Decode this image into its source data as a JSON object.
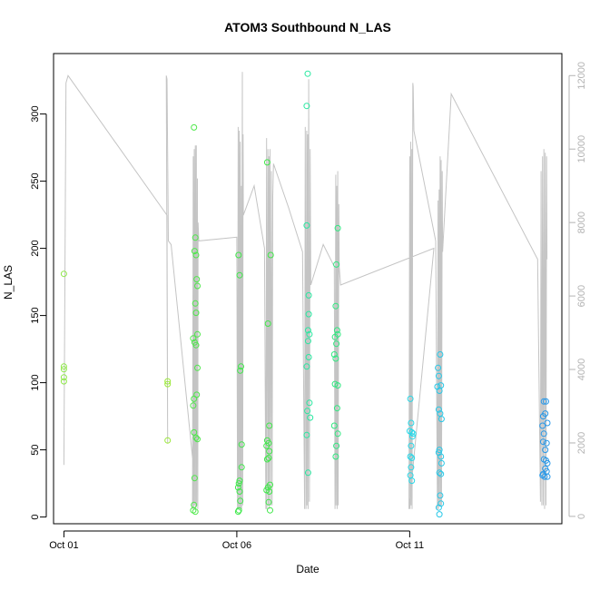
{
  "chart_data": {
    "type": "scatter",
    "title": "ATOM3 Southbound N_LAS",
    "xlabel": "Date",
    "ylabel": "N_LAS",
    "x_tick_labels": [
      "Oct 01",
      "Oct 06",
      "Oct 11"
    ],
    "x_ticks_day": [
      1,
      6,
      11
    ],
    "xlim_day": [
      0.7,
      15.4
    ],
    "ylim": [
      -5,
      345
    ],
    "y_ticks": [
      0,
      50,
      100,
      150,
      200,
      250,
      300
    ],
    "secondary_axis": {
      "ylim": [
        -200,
        12600
      ],
      "ticks": [
        0,
        2000,
        4000,
        6000,
        8000,
        10000,
        12000
      ],
      "color": "#b3b3b3"
    },
    "series": [
      {
        "values": [
          {
            "day": 1.0,
            "y": 181
          },
          {
            "day": 1.0,
            "y": 112
          },
          {
            "day": 1.0,
            "y": 110
          },
          {
            "day": 1.0,
            "y": 104
          },
          {
            "day": 1.0,
            "y": 101
          }
        ]
      },
      {
        "values": [
          {
            "day": 4.0,
            "y": 101
          },
          {
            "day": 4.0,
            "y": 99
          },
          {
            "day": 4.0,
            "y": 57
          }
        ]
      },
      {
        "values": [
          {
            "day": 4.76,
            "y": 290
          },
          {
            "day": 4.8,
            "y": 208
          },
          {
            "day": 4.78,
            "y": 198
          },
          {
            "day": 4.82,
            "y": 195
          },
          {
            "day": 4.84,
            "y": 177
          },
          {
            "day": 4.86,
            "y": 172
          },
          {
            "day": 4.8,
            "y": 159
          },
          {
            "day": 4.82,
            "y": 152
          },
          {
            "day": 4.86,
            "y": 136
          },
          {
            "day": 4.74,
            "y": 133
          },
          {
            "day": 4.78,
            "y": 130
          },
          {
            "day": 4.82,
            "y": 128
          },
          {
            "day": 4.86,
            "y": 111
          },
          {
            "day": 4.84,
            "y": 91
          },
          {
            "day": 4.76,
            "y": 88
          },
          {
            "day": 4.74,
            "y": 83
          },
          {
            "day": 4.76,
            "y": 63
          },
          {
            "day": 4.82,
            "y": 59
          },
          {
            "day": 4.86,
            "y": 58
          },
          {
            "day": 4.78,
            "y": 29
          },
          {
            "day": 4.76,
            "y": 9
          },
          {
            "day": 4.74,
            "y": 5
          },
          {
            "day": 4.8,
            "y": 4
          }
        ]
      },
      {
        "values": [
          {
            "day": 6.05,
            "y": 195
          },
          {
            "day": 6.08,
            "y": 180
          },
          {
            "day": 6.12,
            "y": 112
          },
          {
            "day": 6.1,
            "y": 109
          },
          {
            "day": 6.14,
            "y": 54
          },
          {
            "day": 6.14,
            "y": 37
          },
          {
            "day": 6.08,
            "y": 27
          },
          {
            "day": 6.06,
            "y": 25
          },
          {
            "day": 6.04,
            "y": 22
          },
          {
            "day": 6.08,
            "y": 19
          },
          {
            "day": 6.1,
            "y": 12
          },
          {
            "day": 6.06,
            "y": 5
          },
          {
            "day": 6.04,
            "y": 4
          }
        ]
      },
      {
        "values": [
          {
            "day": 6.88,
            "y": 264
          },
          {
            "day": 6.98,
            "y": 195
          },
          {
            "day": 6.9,
            "y": 144
          },
          {
            "day": 6.94,
            "y": 68
          },
          {
            "day": 6.88,
            "y": 57
          },
          {
            "day": 6.92,
            "y": 55
          },
          {
            "day": 6.86,
            "y": 53
          },
          {
            "day": 6.94,
            "y": 49
          },
          {
            "day": 6.92,
            "y": 44
          },
          {
            "day": 6.88,
            "y": 43
          },
          {
            "day": 6.96,
            "y": 24
          },
          {
            "day": 6.9,
            "y": 22
          },
          {
            "day": 6.86,
            "y": 20
          },
          {
            "day": 6.94,
            "y": 19
          },
          {
            "day": 6.92,
            "y": 11
          },
          {
            "day": 6.96,
            "y": 5
          }
        ]
      },
      {
        "values": [
          {
            "day": 8.05,
            "y": 330
          },
          {
            "day": 8.02,
            "y": 306
          },
          {
            "day": 8.02,
            "y": 217
          },
          {
            "day": 8.08,
            "y": 165
          },
          {
            "day": 8.08,
            "y": 151
          },
          {
            "day": 8.06,
            "y": 139
          },
          {
            "day": 8.1,
            "y": 136
          },
          {
            "day": 8.06,
            "y": 131
          },
          {
            "day": 8.08,
            "y": 119
          },
          {
            "day": 8.02,
            "y": 112
          },
          {
            "day": 8.1,
            "y": 85
          },
          {
            "day": 8.04,
            "y": 79
          },
          {
            "day": 8.12,
            "y": 74
          },
          {
            "day": 8.02,
            "y": 61
          },
          {
            "day": 8.06,
            "y": 33
          }
        ]
      },
      {
        "values": [
          {
            "day": 8.92,
            "y": 215
          },
          {
            "day": 8.88,
            "y": 188
          },
          {
            "day": 8.86,
            "y": 157
          },
          {
            "day": 8.9,
            "y": 139
          },
          {
            "day": 8.92,
            "y": 136
          },
          {
            "day": 8.84,
            "y": 134
          },
          {
            "day": 8.88,
            "y": 129
          },
          {
            "day": 8.82,
            "y": 121
          },
          {
            "day": 8.86,
            "y": 118
          },
          {
            "day": 8.84,
            "y": 99
          },
          {
            "day": 8.92,
            "y": 98
          },
          {
            "day": 8.9,
            "y": 81
          },
          {
            "day": 8.82,
            "y": 68
          },
          {
            "day": 8.92,
            "y": 62
          },
          {
            "day": 8.88,
            "y": 53
          },
          {
            "day": 8.86,
            "y": 45
          }
        ]
      },
      {
        "values": [
          {
            "day": 11.02,
            "y": 88
          },
          {
            "day": 11.04,
            "y": 70
          },
          {
            "day": 11.0,
            "y": 64
          },
          {
            "day": 11.06,
            "y": 63
          },
          {
            "day": 11.1,
            "y": 62
          },
          {
            "day": 11.08,
            "y": 60
          },
          {
            "day": 11.04,
            "y": 53
          },
          {
            "day": 11.02,
            "y": 45
          },
          {
            "day": 11.06,
            "y": 44
          },
          {
            "day": 11.04,
            "y": 37
          },
          {
            "day": 11.02,
            "y": 31
          },
          {
            "day": 11.06,
            "y": 27
          }
        ]
      },
      {
        "values": [
          {
            "day": 11.88,
            "y": 121
          },
          {
            "day": 11.82,
            "y": 111
          },
          {
            "day": 11.84,
            "y": 105
          },
          {
            "day": 11.9,
            "y": 98
          },
          {
            "day": 11.8,
            "y": 97
          },
          {
            "day": 11.86,
            "y": 94
          },
          {
            "day": 11.84,
            "y": 80
          },
          {
            "day": 11.88,
            "y": 77
          },
          {
            "day": 11.92,
            "y": 73
          },
          {
            "day": 11.84,
            "y": 48
          },
          {
            "day": 11.86,
            "y": 50
          },
          {
            "day": 11.9,
            "y": 45
          },
          {
            "day": 11.92,
            "y": 40
          },
          {
            "day": 11.86,
            "y": 33
          },
          {
            "day": 11.9,
            "y": 32
          },
          {
            "day": 11.88,
            "y": 16
          },
          {
            "day": 11.84,
            "y": 7
          },
          {
            "day": 11.9,
            "y": 10
          },
          {
            "day": 11.86,
            "y": 2
          }
        ]
      },
      {
        "values": [
          {
            "day": 14.88,
            "y": 86
          },
          {
            "day": 14.94,
            "y": 86
          },
          {
            "day": 14.92,
            "y": 77
          },
          {
            "day": 14.86,
            "y": 75
          },
          {
            "day": 14.98,
            "y": 70
          },
          {
            "day": 14.84,
            "y": 68
          },
          {
            "day": 14.88,
            "y": 62
          },
          {
            "day": 14.86,
            "y": 56
          },
          {
            "day": 14.96,
            "y": 55
          },
          {
            "day": 14.92,
            "y": 50
          },
          {
            "day": 14.88,
            "y": 43
          },
          {
            "day": 14.94,
            "y": 42
          },
          {
            "day": 14.98,
            "y": 40
          },
          {
            "day": 14.92,
            "y": 36
          },
          {
            "day": 14.96,
            "y": 34
          },
          {
            "day": 14.86,
            "y": 32
          },
          {
            "day": 14.84,
            "y": 31
          },
          {
            "day": 14.9,
            "y": 30
          },
          {
            "day": 14.98,
            "y": 30
          }
        ]
      }
    ],
    "colors": [
      "#8fe84a",
      "#9be83a",
      "#4ee84a",
      "#3ee84a",
      "#40e84a",
      "#28e8a0",
      "#30e880",
      "#28d8e8",
      "#28c8e8",
      "#2898e8"
    ],
    "secondary_series": {
      "color": "#c4c4c4",
      "points": [
        {
          "day": 1.0,
          "v": 1400
        },
        {
          "day": 1.06,
          "v": 11800
        },
        {
          "day": 1.12,
          "v": 12000
        },
        {
          "day": 3.98,
          "v": 8200
        },
        {
          "day": 4.0,
          "v": 2100
        },
        {
          "day": 4.0,
          "v": 2000
        },
        {
          "day": 3.96,
          "v": 12000
        },
        {
          "day": 3.98,
          "v": 11900
        },
        {
          "day": 4.02,
          "v": 7500
        },
        {
          "day": 4.1,
          "v": 7400
        },
        {
          "day": 4.75,
          "v": 1300
        },
        {
          "day": 4.72,
          "v": 200
        },
        {
          "day": 4.74,
          "v": 9800
        },
        {
          "day": 4.75,
          "v": 200
        },
        {
          "day": 4.77,
          "v": 10000
        },
        {
          "day": 4.78,
          "v": 300
        },
        {
          "day": 4.8,
          "v": 10100
        },
        {
          "day": 4.81,
          "v": 200
        },
        {
          "day": 4.83,
          "v": 10100
        },
        {
          "day": 4.84,
          "v": 300
        },
        {
          "day": 4.86,
          "v": 9200
        },
        {
          "day": 4.87,
          "v": 200
        },
        {
          "day": 4.88,
          "v": 8000
        },
        {
          "day": 4.9,
          "v": 7500
        },
        {
          "day": 6.0,
          "v": 7600
        },
        {
          "day": 6.02,
          "v": 200
        },
        {
          "day": 6.04,
          "v": 10600
        },
        {
          "day": 6.05,
          "v": 200
        },
        {
          "day": 6.07,
          "v": 10500
        },
        {
          "day": 6.08,
          "v": 200
        },
        {
          "day": 6.1,
          "v": 10200
        },
        {
          "day": 6.11,
          "v": 200
        },
        {
          "day": 6.13,
          "v": 9000
        },
        {
          "day": 6.14,
          "v": 200
        },
        {
          "day": 6.16,
          "v": 12100
        },
        {
          "day": 6.17,
          "v": 300
        },
        {
          "day": 6.18,
          "v": 10400
        },
        {
          "day": 6.19,
          "v": 8200
        },
        {
          "day": 6.5,
          "v": 9000
        },
        {
          "day": 6.8,
          "v": 7300
        },
        {
          "day": 6.84,
          "v": 200
        },
        {
          "day": 6.86,
          "v": 10300
        },
        {
          "day": 6.87,
          "v": 200
        },
        {
          "day": 6.9,
          "v": 10000
        },
        {
          "day": 6.91,
          "v": 300
        },
        {
          "day": 6.93,
          "v": 9800
        },
        {
          "day": 6.94,
          "v": 200
        },
        {
          "day": 6.96,
          "v": 10000
        },
        {
          "day": 6.98,
          "v": 300
        },
        {
          "day": 7.0,
          "v": 9400
        },
        {
          "day": 7.02,
          "v": 300
        },
        {
          "day": 7.04,
          "v": 8700
        },
        {
          "day": 7.06,
          "v": 9600
        },
        {
          "day": 7.5,
          "v": 8400
        },
        {
          "day": 7.9,
          "v": 7200
        },
        {
          "day": 7.96,
          "v": 200
        },
        {
          "day": 7.98,
          "v": 10600
        },
        {
          "day": 8.0,
          "v": 200
        },
        {
          "day": 8.02,
          "v": 10500
        },
        {
          "day": 8.03,
          "v": 300
        },
        {
          "day": 8.05,
          "v": 10400
        },
        {
          "day": 8.06,
          "v": 200
        },
        {
          "day": 8.08,
          "v": 11900
        },
        {
          "day": 8.1,
          "v": 400
        },
        {
          "day": 8.12,
          "v": 10000
        },
        {
          "day": 8.14,
          "v": 6300
        },
        {
          "day": 8.5,
          "v": 7400
        },
        {
          "day": 8.82,
          "v": 6800
        },
        {
          "day": 8.84,
          "v": 200
        },
        {
          "day": 8.86,
          "v": 9300
        },
        {
          "day": 8.87,
          "v": 300
        },
        {
          "day": 8.89,
          "v": 9000
        },
        {
          "day": 8.9,
          "v": 200
        },
        {
          "day": 8.92,
          "v": 9400
        },
        {
          "day": 8.93,
          "v": 300
        },
        {
          "day": 8.95,
          "v": 8500
        },
        {
          "day": 8.96,
          "v": 6800
        },
        {
          "day": 9.0,
          "v": 6300
        },
        {
          "day": 11.7,
          "v": 7300
        },
        {
          "day": 10.98,
          "v": 200
        },
        {
          "day": 11.0,
          "v": 9800
        },
        {
          "day": 11.01,
          "v": 200
        },
        {
          "day": 11.03,
          "v": 10200
        },
        {
          "day": 11.04,
          "v": 300
        },
        {
          "day": 11.06,
          "v": 10000
        },
        {
          "day": 11.07,
          "v": 200
        },
        {
          "day": 11.09,
          "v": 11800
        },
        {
          "day": 11.1,
          "v": 11700
        },
        {
          "day": 11.12,
          "v": 10500
        },
        {
          "day": 11.75,
          "v": 7500
        },
        {
          "day": 11.8,
          "v": 200
        },
        {
          "day": 11.82,
          "v": 8600
        },
        {
          "day": 11.83,
          "v": 200
        },
        {
          "day": 11.85,
          "v": 8900
        },
        {
          "day": 11.86,
          "v": 300
        },
        {
          "day": 11.88,
          "v": 9800
        },
        {
          "day": 11.89,
          "v": 300
        },
        {
          "day": 11.91,
          "v": 9700
        },
        {
          "day": 11.92,
          "v": 300
        },
        {
          "day": 11.94,
          "v": 9400
        },
        {
          "day": 11.95,
          "v": 7200
        },
        {
          "day": 12.2,
          "v": 11500
        },
        {
          "day": 14.7,
          "v": 7000
        },
        {
          "day": 14.78,
          "v": 400
        },
        {
          "day": 14.8,
          "v": 9400
        },
        {
          "day": 14.82,
          "v": 300
        },
        {
          "day": 14.84,
          "v": 9800
        },
        {
          "day": 14.86,
          "v": 300
        },
        {
          "day": 14.88,
          "v": 10000
        },
        {
          "day": 14.9,
          "v": 200
        },
        {
          "day": 14.92,
          "v": 9900
        },
        {
          "day": 14.94,
          "v": 300
        },
        {
          "day": 14.96,
          "v": 9800
        },
        {
          "day": 14.97,
          "v": 7000
        }
      ]
    },
    "grid": false,
    "legend": "none"
  }
}
